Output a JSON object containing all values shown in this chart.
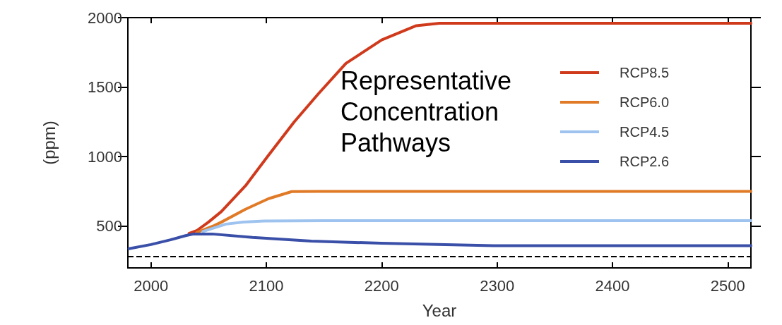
{
  "chart_data": {
    "type": "line",
    "xlabel": "Year",
    "ylabel": "(ppm)",
    "legend_title": "Representative Concentration Pathways",
    "xlim": [
      1980,
      2520
    ],
    "xticks": [
      2000,
      2100,
      2200,
      2300,
      2400,
      2500
    ],
    "ylim": [
      200,
      2000
    ],
    "yticks": [
      500,
      1000,
      1500,
      2000
    ],
    "legend": "top right",
    "grid": false,
    "marker": "none",
    "line_style": "solid",
    "ref_lines": [
      {
        "axis": "y",
        "value": 280,
        "color": "#000000",
        "line_style": "dashed"
      }
    ],
    "series": [
      {
        "name": "RCP8.5",
        "color": "#d03a1c",
        "x": [
          2033,
          2040,
          2050,
          2061,
          2082,
          2102,
          2124,
          2145,
          2169,
          2200,
          2230,
          2250,
          2520
        ],
        "values": [
          448,
          470,
          530,
          605,
          791,
          1011,
          1248,
          1451,
          1671,
          1840,
          1942,
          1960,
          1960
        ]
      },
      {
        "name": "RCP6.0",
        "color": "#e07a26",
        "x": [
          2040,
          2055,
          2061,
          2082,
          2102,
          2122,
          2145,
          2520
        ],
        "values": [
          456,
          505,
          529,
          622,
          698,
          749,
          750,
          750
        ]
      },
      {
        "name": "RCP4.5",
        "color": "#9dc3ee",
        "x": [
          2045,
          2065,
          2080,
          2098,
          2150,
          2520
        ],
        "values": [
          462,
          515,
          530,
          537,
          540,
          540
        ]
      },
      {
        "name": "RCP2.6",
        "color": "#3a4fa8",
        "x": [
          1981,
          2000,
          2017,
          2030,
          2037,
          2053,
          2088,
          2139,
          2200,
          2297,
          2520
        ],
        "values": [
          338,
          368,
          402,
          432,
          444,
          444,
          419,
          393,
          377,
          360,
          360
        ]
      }
    ]
  }
}
